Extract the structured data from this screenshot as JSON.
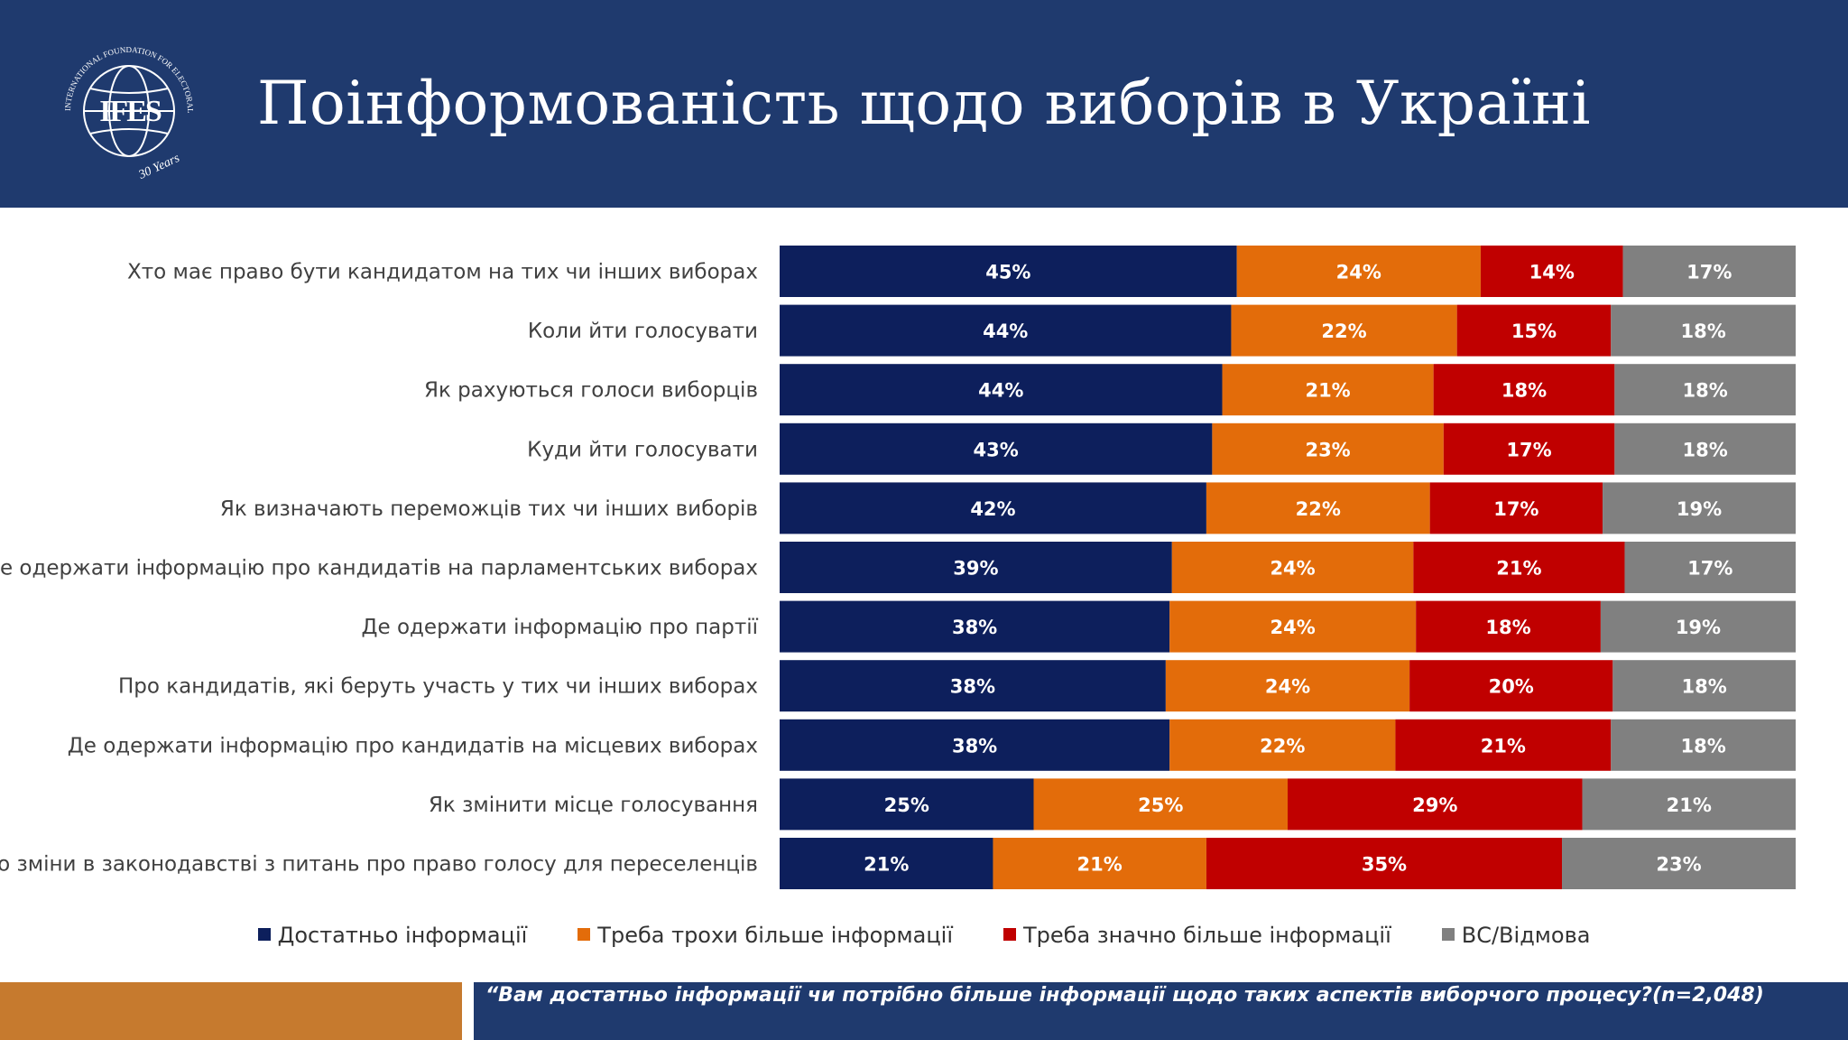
{
  "header": {
    "title": "Поінформованість щодо виборів в Україні",
    "logo": {
      "letters": "IFES",
      "ring_text": "INTERNATIONAL FOUNDATION FOR ELECTORAL SYSTEMS",
      "anniversary": "30 Years"
    },
    "color": "#1f3a6e"
  },
  "chart_data": {
    "type": "bar",
    "orientation": "horizontal",
    "stacked": true,
    "categories": [
      "Хто має право бути кандидатом на тих чи інших виборах",
      "Коли йти голосувати",
      "Як рахуються голоси виборців",
      "Куди йти голосувати",
      "Як визначають переможців тих чи інших виборів",
      "Де одержати інформацію про кандидатів на парламентських виборах",
      "Де одержати інформацію про партії",
      "Про кандидатів, які беруть участь у тих чи інших виборах",
      "Де одержати інформацію про кандидатів на місцевих виборах",
      "Як змінити місце голосування",
      "Про зміни в законодавстві з питань про право голосу для переселенців"
    ],
    "series": [
      {
        "name": "Достатньо інформації",
        "color": "#0d1f5c",
        "values": [
          45,
          44,
          44,
          43,
          42,
          39,
          38,
          38,
          38,
          25,
          21
        ]
      },
      {
        "name": "Треба трохи більше інформації",
        "color": "#e36c0a",
        "values": [
          24,
          22,
          21,
          23,
          22,
          24,
          24,
          24,
          22,
          25,
          21
        ]
      },
      {
        "name": "Треба значно більше інформації",
        "color": "#c00000",
        "values": [
          14,
          15,
          18,
          17,
          17,
          21,
          18,
          20,
          21,
          29,
          35
        ]
      },
      {
        "name": "ВС/Відмова",
        "color": "#808080",
        "values": [
          17,
          18,
          18,
          18,
          19,
          17,
          19,
          18,
          18,
          21,
          23
        ]
      }
    ],
    "value_suffix": "%",
    "data_labels": true,
    "legend_position": "bottom",
    "grid": false
  },
  "footer": {
    "question": "“Вам достатньо інформації чи потрібно більше інформації щодо таких аспектів виборчого процесу?(n=2,048)",
    "accent_color": "#c67a2e"
  }
}
